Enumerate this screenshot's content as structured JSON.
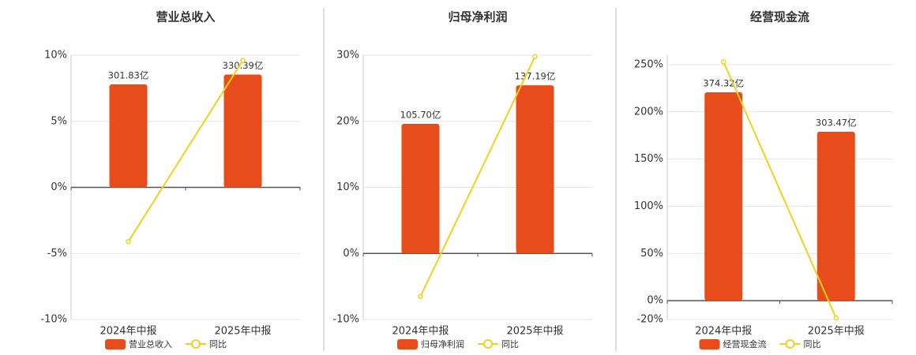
{
  "chart_data": [
    {
      "type": "bar",
      "title": "营业总收入",
      "categories": [
        "2024年中报",
        "2025年中报"
      ],
      "series": [
        {
          "name": "营业总收入",
          "color": "#e84c1a",
          "axis": "y2",
          "values": [
            301.83,
            330.39
          ],
          "value_labels": [
            "301.83亿",
            "330.39亿"
          ]
        },
        {
          "name": "同比",
          "color": "#f2d01c",
          "type": "line",
          "values": [
            -4.1,
            9.6
          ]
        }
      ],
      "ylim": [
        -10,
        10
      ],
      "yticks": [
        {
          "value": -10,
          "label": "-10%"
        },
        {
          "value": -5,
          "label": "-5%"
        },
        {
          "value": 0,
          "label": "0%"
        },
        {
          "value": 5,
          "label": "5%"
        },
        {
          "value": 10,
          "label": "10%"
        }
      ],
      "y2lim": [
        -387,
        387
      ]
    },
    {
      "type": "bar",
      "title": "归母净利润",
      "categories": [
        "2024年中报",
        "2025年中报"
      ],
      "series": [
        {
          "name": "归母净利润",
          "color": "#e84c1a",
          "axis": "y2",
          "values": [
            105.7,
            137.19
          ],
          "value_labels": [
            "105.70亿",
            "137.19亿"
          ]
        },
        {
          "name": "同比",
          "color": "#f2d01c",
          "type": "line",
          "values": [
            -6.5,
            29.8
          ]
        }
      ],
      "ylim": [
        -10,
        30
      ],
      "yticks": [
        {
          "value": -10,
          "label": "-10%"
        },
        {
          "value": 0,
          "label": "0%"
        },
        {
          "value": 10,
          "label": "10%"
        },
        {
          "value": 20,
          "label": "20%"
        },
        {
          "value": 30,
          "label": "30%"
        }
      ],
      "y2lim": [
        -53.9,
        161.7
      ]
    },
    {
      "type": "bar",
      "title": "经营现金流",
      "categories": [
        "2024年中报",
        "2025年中报"
      ],
      "series": [
        {
          "name": "经营现金流",
          "color": "#e84c1a",
          "axis": "y2",
          "values": [
            374.32,
            303.47
          ],
          "value_labels": [
            "374.32亿",
            "303.47亿"
          ]
        },
        {
          "name": "同比",
          "color": "#f2d01c",
          "type": "line",
          "values": [
            253,
            -18.4
          ]
        }
      ],
      "ylim": [
        -20,
        260
      ],
      "yticks": [
        {
          "value": -20,
          "label": "-20%"
        },
        {
          "value": 0,
          "label": "0%"
        },
        {
          "value": 50,
          "label": "50%"
        },
        {
          "value": 100,
          "label": "100%"
        },
        {
          "value": 150,
          "label": "150%"
        },
        {
          "value": 200,
          "label": "200%"
        },
        {
          "value": 250,
          "label": "250%"
        }
      ],
      "y2lim": [
        -34,
        441
      ]
    }
  ]
}
